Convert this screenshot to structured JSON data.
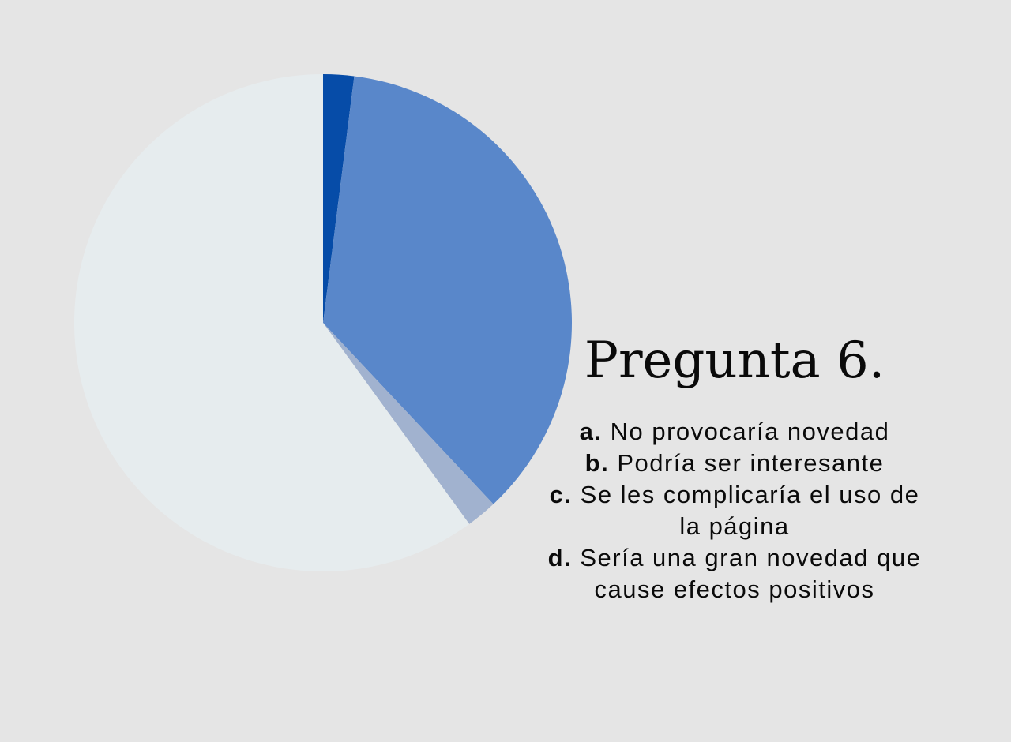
{
  "chart_data": {
    "type": "pie",
    "title": "Pregunta 6.",
    "slices": [
      {
        "letter": "a.",
        "label": "No provocaría novedad",
        "value": 2,
        "color": "#064ca8"
      },
      {
        "letter": "b.",
        "label": "Podría ser interesante",
        "value": 36,
        "color": "#5987ca"
      },
      {
        "letter": "c.",
        "label": "Se les complicaría el uso de la página",
        "value": 2,
        "color": "#a1b2cf"
      },
      {
        "letter": "d.",
        "label": "Sería una gran novedad que cause efectos positivos",
        "value": 60,
        "color": "#e6ecee"
      }
    ],
    "legend_position": "right"
  }
}
